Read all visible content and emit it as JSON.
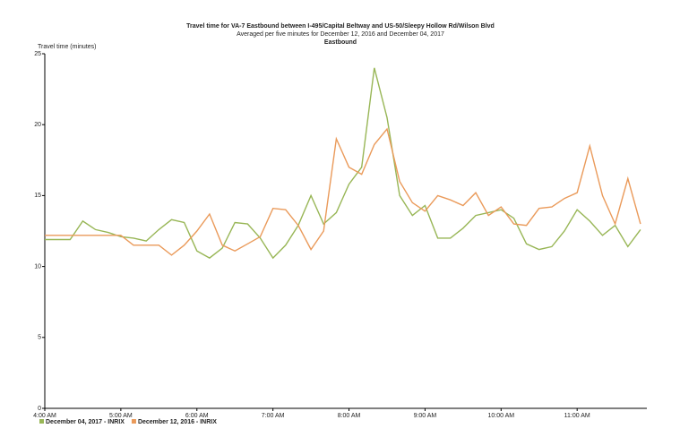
{
  "chart_data": {
    "type": "line",
    "title": "Travel time for VA-7  Eastbound between I-495/Capital Beltway and US-50/Sleepy Hollow Rd/Wilson Blvd",
    "subtitle": "Averaged per five minutes for December 12, 2016 and December 04, 2017",
    "subtitle2": "Eastbound",
    "y_label": "Travel time (minutes)",
    "x": [
      240,
      250,
      260,
      270,
      280,
      290,
      300,
      310,
      320,
      330,
      340,
      350,
      360,
      370,
      380,
      390,
      400,
      410,
      420,
      430,
      440,
      450,
      460,
      470,
      480,
      490,
      500,
      510,
      520,
      530,
      540,
      550,
      560,
      570,
      580,
      590,
      600,
      610,
      620,
      630,
      640,
      650,
      660,
      670,
      680,
      690,
      700,
      710
    ],
    "xlim": [
      240,
      715
    ],
    "xticks": [
      {
        "value": 240,
        "label": "4:00 AM"
      },
      {
        "value": 300,
        "label": "5:00 AM"
      },
      {
        "value": 360,
        "label": "6:00 AM"
      },
      {
        "value": 420,
        "label": "7:00 AM"
      },
      {
        "value": 480,
        "label": "8:00 AM"
      },
      {
        "value": 540,
        "label": "9:00 AM"
      },
      {
        "value": 600,
        "label": "10:00 AM"
      },
      {
        "value": 660,
        "label": "11:00 AM"
      }
    ],
    "ylim": [
      0,
      25
    ],
    "yticks": [
      0,
      5,
      10,
      15,
      20,
      25
    ],
    "grid": false,
    "legend": "bottom-left",
    "series": [
      {
        "name": "December 04, 2017 - INRIX",
        "color": "#98b656",
        "values": [
          11.9,
          11.9,
          11.9,
          13.2,
          12.6,
          12.4,
          12.1,
          12.0,
          11.8,
          12.6,
          13.3,
          13.1,
          11.1,
          10.6,
          11.3,
          13.1,
          13.0,
          12.0,
          10.6,
          11.5,
          12.9,
          15.0,
          13.0,
          13.8,
          15.8,
          17.0,
          24.0,
          20.5,
          15.0,
          13.6,
          14.3,
          12.0,
          12.0,
          12.7,
          13.6,
          13.8,
          14.0,
          13.4,
          11.6,
          11.2,
          11.4,
          12.5,
          14.0,
          13.2,
          12.2,
          12.9,
          11.4,
          12.6
        ]
      },
      {
        "name": "December 12, 2016 - INRIX",
        "color": "#ea9a5a",
        "values": [
          12.2,
          12.2,
          12.2,
          12.2,
          12.2,
          12.2,
          12.2,
          11.5,
          11.5,
          11.5,
          10.8,
          11.5,
          12.5,
          13.7,
          11.5,
          11.1,
          11.6,
          12.1,
          14.1,
          14.0,
          12.9,
          11.2,
          12.5,
          19.0,
          17.0,
          16.5,
          18.6,
          19.7,
          16.0,
          14.5,
          13.9,
          15.0,
          14.7,
          14.3,
          15.2,
          13.6,
          14.2,
          13.0,
          12.9,
          14.1,
          14.2,
          14.8,
          15.2,
          18.5,
          15.0,
          13.0,
          16.2,
          13.0
        ]
      }
    ]
  }
}
